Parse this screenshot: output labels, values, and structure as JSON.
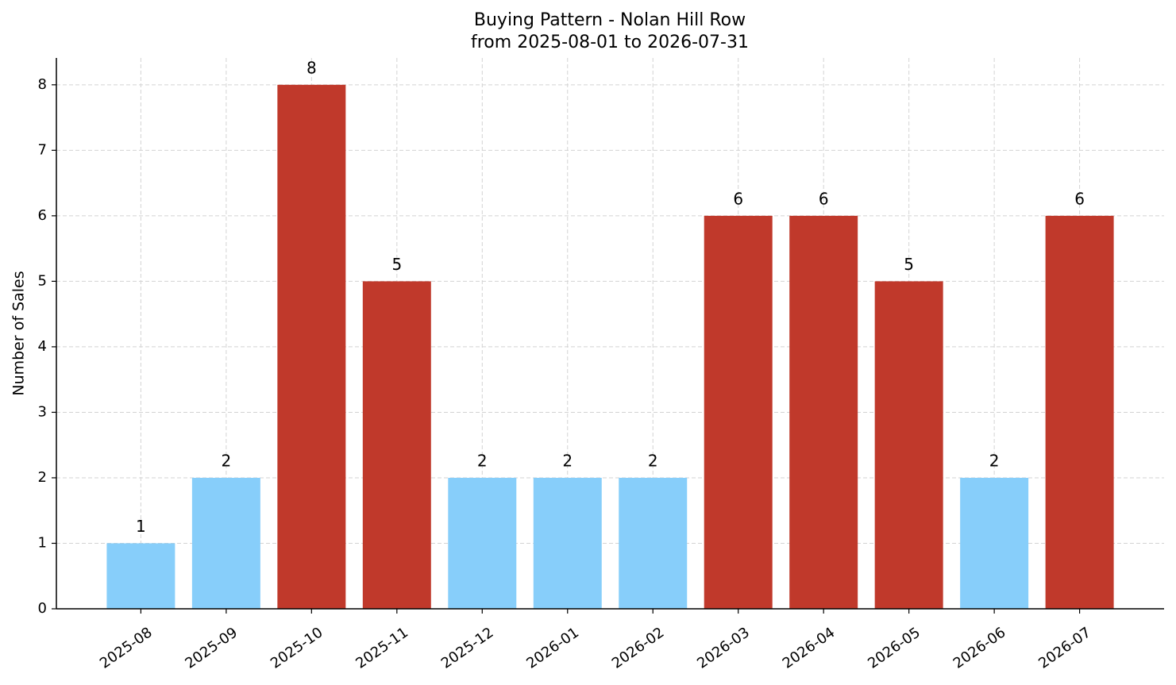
{
  "chart_data": {
    "type": "bar",
    "title": "Buying Pattern - Nolan Hill Row",
    "subtitle": "from 2025-08-01 to 2026-07-31",
    "y_label": "Number of Sales",
    "categories": [
      "2025-08",
      "2025-09",
      "2025-10",
      "2025-11",
      "2025-12",
      "2026-01",
      "2026-02",
      "2026-03",
      "2026-04",
      "2026-05",
      "2026-06",
      "2026-07"
    ],
    "values": [
      1,
      2,
      8,
      5,
      2,
      2,
      2,
      6,
      6,
      5,
      2,
      6
    ],
    "colors": [
      "#87cefa",
      "#87cefa",
      "#c0392b",
      "#c0392b",
      "#87cefa",
      "#87cefa",
      "#87cefa",
      "#c0392b",
      "#c0392b",
      "#c0392b",
      "#87cefa",
      "#c0392b"
    ],
    "ylim": [
      0,
      8.41
    ],
    "yticks": [
      0,
      1,
      2,
      3,
      4,
      5,
      6,
      7,
      8
    ],
    "grid": true
  }
}
